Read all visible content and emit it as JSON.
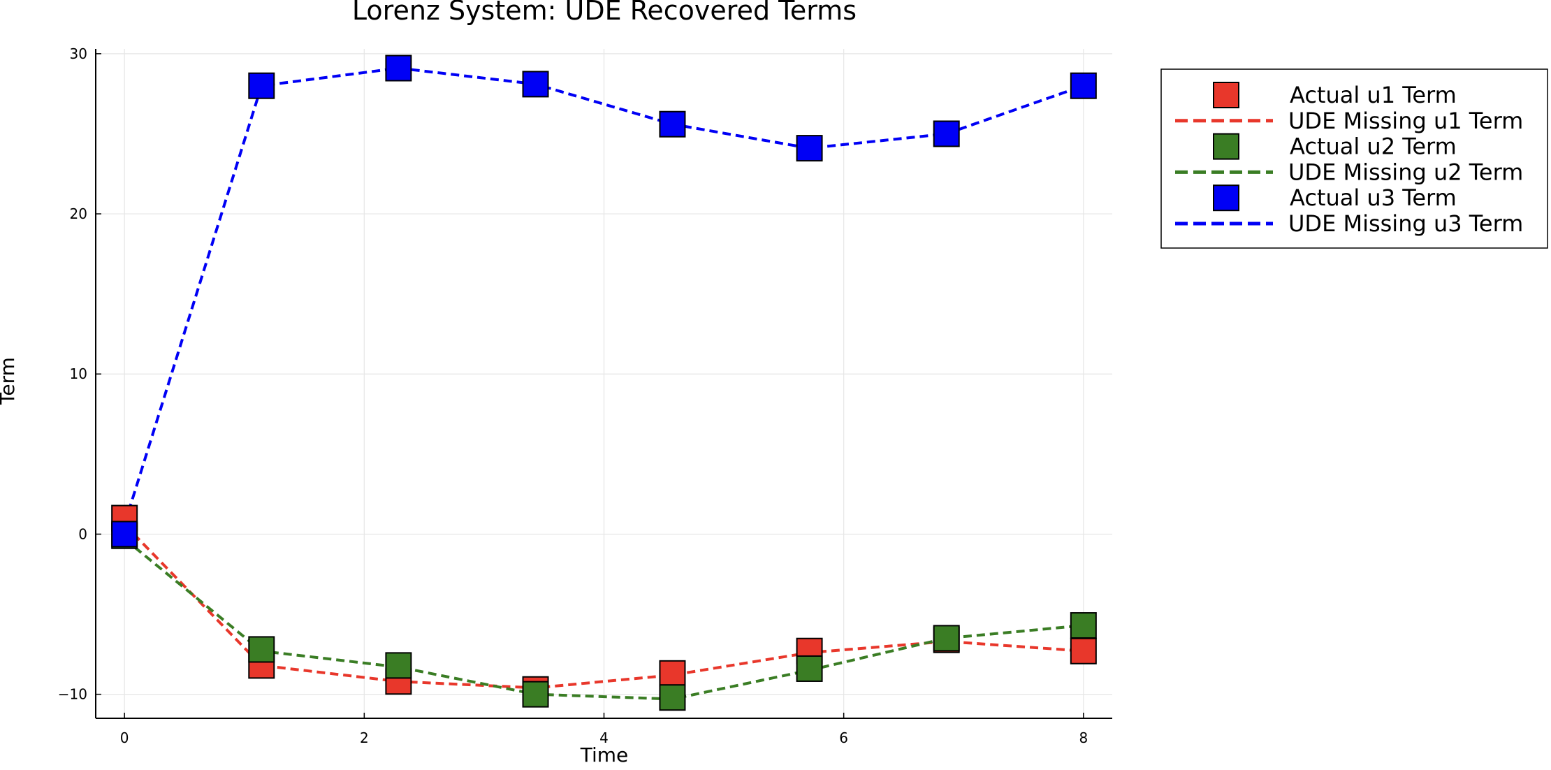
{
  "chart_data": {
    "type": "line",
    "title": "Lorenz System: UDE Recovered Terms",
    "xlabel": "Time",
    "ylabel": "Term",
    "xlim": [
      -0.24,
      8.24
    ],
    "ylim": [
      -11.5,
      30.3
    ],
    "xticks": [
      0,
      2,
      4,
      6,
      8
    ],
    "yticks": [
      -10,
      0,
      10,
      20,
      30
    ],
    "grid": true,
    "legend_position": "outer-right-top",
    "x": [
      0,
      1.143,
      2.286,
      3.429,
      4.571,
      5.714,
      6.857,
      8.0
    ],
    "series": [
      {
        "name": "Actual u1 Term",
        "kind": "markers",
        "color": "#e8372b",
        "values": [
          1.0,
          -8.2,
          -9.2,
          -9.7,
          -8.7,
          -7.3,
          -6.6,
          -7.3
        ]
      },
      {
        "name": "UDE Missing u1 Term",
        "kind": "dashed-line",
        "color": "#e8372b",
        "values": [
          0.6,
          -8.2,
          -9.2,
          -9.6,
          -8.8,
          -7.4,
          -6.7,
          -7.3
        ]
      },
      {
        "name": "Actual u2 Term",
        "kind": "markers",
        "color": "#3a7d24",
        "values": [
          -0.1,
          -7.2,
          -8.2,
          -10.0,
          -10.2,
          -8.4,
          -6.5,
          -5.7
        ]
      },
      {
        "name": "UDE Missing u2 Term",
        "kind": "dashed-line",
        "color": "#3a7d24",
        "values": [
          -0.3,
          -7.3,
          -8.3,
          -10.0,
          -10.3,
          -8.5,
          -6.5,
          -5.7
        ]
      },
      {
        "name": "Actual u3 Term",
        "kind": "markers",
        "color": "#0000f5",
        "values": [
          0.0,
          28.0,
          29.1,
          28.1,
          25.6,
          24.1,
          25.0,
          28.0
        ]
      },
      {
        "name": "UDE Missing u3 Term",
        "kind": "dashed-line",
        "color": "#0000f5",
        "values": [
          0.6,
          28.0,
          29.1,
          28.1,
          25.6,
          24.1,
          25.0,
          28.0
        ]
      }
    ]
  }
}
